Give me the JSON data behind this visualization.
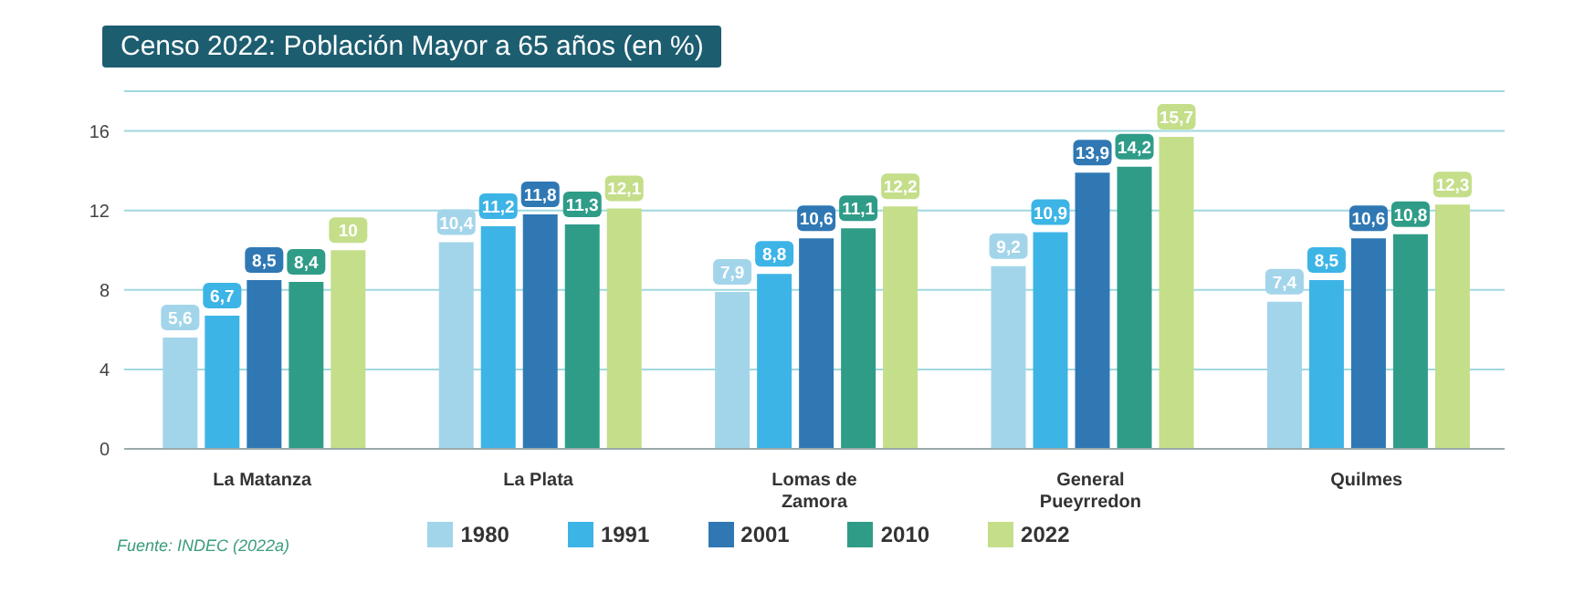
{
  "chart_data": {
    "type": "bar",
    "title": "Censo 2022: Población Mayor a 65 años (en %)",
    "categories": [
      "La Matanza",
      "La Plata",
      "Lomas de Zamora",
      "General Pueyrredon",
      "Quilmes"
    ],
    "series": [
      {
        "name": "1980",
        "color": "#a3d5ea",
        "values": [
          5.6,
          10.4,
          7.9,
          9.2,
          7.4
        ],
        "value_labels": [
          "5,6",
          "10,4",
          "7,9",
          "9,2",
          "7,4"
        ]
      },
      {
        "name": "1991",
        "color": "#3db4e6",
        "values": [
          6.7,
          11.2,
          8.8,
          10.9,
          8.5
        ],
        "value_labels": [
          "6,7",
          "11,2",
          "8,8",
          "10,9",
          "8,5"
        ]
      },
      {
        "name": "2001",
        "color": "#2f78b4",
        "values": [
          8.5,
          11.8,
          10.6,
          13.9,
          10.6
        ],
        "value_labels": [
          "8,5",
          "11,8",
          "10,6",
          "13,9",
          "10,6"
        ]
      },
      {
        "name": "2010",
        "color": "#2f9c88",
        "values": [
          8.4,
          11.3,
          11.1,
          14.2,
          10.8
        ],
        "value_labels": [
          "8,4",
          "11,3",
          "11,1",
          "14,2",
          "10,8"
        ]
      },
      {
        "name": "2022",
        "color": "#c4de8a",
        "values": [
          10,
          12.1,
          12.2,
          15.7,
          12.3
        ],
        "value_labels": [
          "10",
          "12,1",
          "12,2",
          "15,7",
          "12,3"
        ]
      }
    ],
    "ylim": [
      0,
      18
    ],
    "yticks": [
      0,
      4,
      8,
      12,
      16
    ],
    "grid": "y",
    "legend": "bottom",
    "annotations": [
      "Fuente: INDEC (2022a)"
    ]
  }
}
